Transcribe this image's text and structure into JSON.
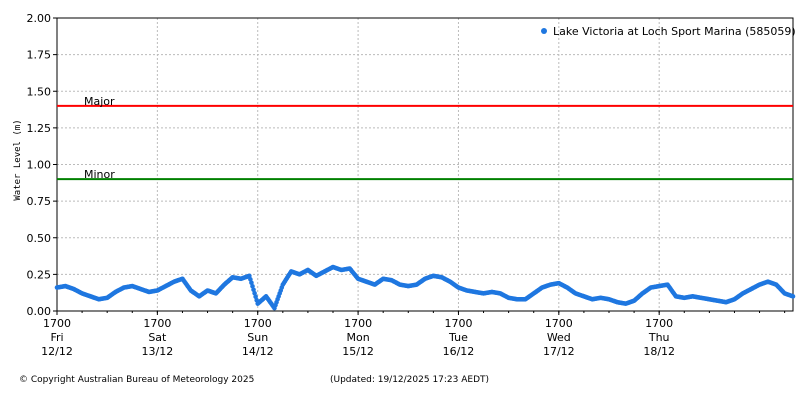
{
  "footer": {
    "copyright": "© Copyright Australian Bureau of Meteorology 2025",
    "updated": "(Updated: 19/12/2025 17:23 AEDT)"
  },
  "chart_data": {
    "type": "scatter",
    "title": "",
    "ylabel": "Water Level (m)",
    "xlabel": "",
    "ylim": [
      0,
      2
    ],
    "yticks": [
      "0.00",
      "0.25",
      "0.50",
      "0.75",
      "1.00",
      "1.25",
      "1.50",
      "1.75",
      "2.00"
    ],
    "xlim_hours": [
      0,
      176
    ],
    "xticks": [
      {
        "time": "1700",
        "day": "Fri",
        "date": "12/12",
        "hour": 0
      },
      {
        "time": "1700",
        "day": "Sat",
        "date": "13/12",
        "hour": 24
      },
      {
        "time": "1700",
        "day": "Sun",
        "date": "14/12",
        "hour": 48
      },
      {
        "time": "1700",
        "day": "Mon",
        "date": "15/12",
        "hour": 72
      },
      {
        "time": "1700",
        "day": "Tue",
        "date": "16/12",
        "hour": 96
      },
      {
        "time": "1700",
        "day": "Wed",
        "date": "17/12",
        "hour": 120
      },
      {
        "time": "1700",
        "day": "Thu",
        "date": "18/12",
        "hour": 144
      }
    ],
    "grid": true,
    "legend_position": "top-right",
    "series": [
      {
        "name": "Lake Victoria at Loch Sport Marina (585059)",
        "color": "#1f77e0",
        "x_hours": [
          0,
          2,
          4,
          6,
          8,
          10,
          12,
          14,
          16,
          18,
          20,
          22,
          24,
          26,
          28,
          30,
          32,
          34,
          36,
          38,
          40,
          42,
          44,
          46,
          48,
          50,
          52,
          54,
          56,
          58,
          60,
          62,
          64,
          66,
          68,
          70,
          72,
          74,
          76,
          78,
          80,
          82,
          84,
          86,
          88,
          90,
          92,
          94,
          96,
          98,
          100,
          102,
          104,
          106,
          108,
          110,
          112,
          114,
          116,
          118,
          120,
          122,
          124,
          126,
          128,
          130,
          132,
          134,
          136,
          138,
          140,
          142,
          144,
          146,
          148,
          150,
          152,
          154,
          156,
          158,
          160,
          162,
          164,
          166,
          168,
          170,
          172,
          174,
          176
        ],
        "y": [
          0.16,
          0.17,
          0.15,
          0.12,
          0.1,
          0.08,
          0.09,
          0.13,
          0.16,
          0.17,
          0.15,
          0.13,
          0.14,
          0.17,
          0.2,
          0.22,
          0.14,
          0.1,
          0.14,
          0.12,
          0.18,
          0.23,
          0.22,
          0.24,
          0.05,
          0.1,
          0.02,
          0.18,
          0.27,
          0.25,
          0.28,
          0.24,
          0.27,
          0.3,
          0.28,
          0.29,
          0.22,
          0.2,
          0.18,
          0.22,
          0.21,
          0.18,
          0.17,
          0.18,
          0.22,
          0.24,
          0.23,
          0.2,
          0.16,
          0.14,
          0.13,
          0.12,
          0.13,
          0.12,
          0.09,
          0.08,
          0.08,
          0.12,
          0.16,
          0.18,
          0.19,
          0.16,
          0.12,
          0.1,
          0.08,
          0.09,
          0.08,
          0.06,
          0.05,
          0.07,
          0.12,
          0.16,
          0.17,
          0.18,
          0.1,
          0.09,
          0.1,
          0.09,
          0.08,
          0.07,
          0.06,
          0.08,
          0.12,
          0.15,
          0.18,
          0.2,
          0.18,
          0.12,
          0.1
        ]
      }
    ],
    "thresholds": [
      {
        "label": "Major",
        "value": 1.4,
        "color": "#ff0000"
      },
      {
        "label": "Minor",
        "value": 0.9,
        "color": "#008000"
      }
    ]
  }
}
